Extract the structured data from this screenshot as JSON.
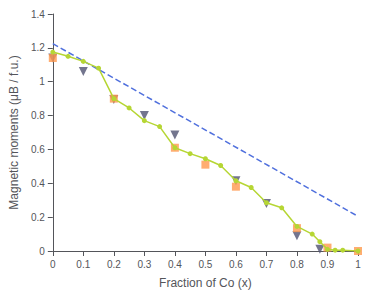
{
  "chart_data": {
    "type": "line",
    "title": "",
    "xlabel": "Fraction of Co (x)",
    "ylabel": "Magnetic moments (μB / f.u.)",
    "xlim": [
      0,
      1.0
    ],
    "ylim": [
      0,
      1.4
    ],
    "xticks": [
      0,
      0.1,
      0.2,
      0.3,
      0.4,
      0.5,
      0.6,
      0.7,
      0.8,
      0.9,
      1.0
    ],
    "yticks": [
      0,
      0.2,
      0.4,
      0.6,
      0.8,
      1.0,
      1.2,
      1.4
    ],
    "grid": false,
    "series": [
      {
        "type": "line",
        "line_style": "dashed",
        "x": [
          0.0,
          1.0
        ],
        "values": [
          1.225,
          0.205
        ]
      },
      {
        "type": "line",
        "line_style": "solid",
        "marker": "circle",
        "x": [
          0.0,
          0.05,
          0.1,
          0.15,
          0.2,
          0.25,
          0.3,
          0.35,
          0.4,
          0.45,
          0.5,
          0.55,
          0.6,
          0.65,
          0.7,
          0.75,
          0.8,
          0.85,
          0.875,
          0.9,
          0.925,
          0.95,
          1.0
        ],
        "values": [
          1.175,
          1.15,
          1.12,
          1.08,
          0.9,
          0.845,
          0.77,
          0.735,
          0.61,
          0.575,
          0.545,
          0.505,
          0.415,
          0.375,
          0.285,
          0.255,
          0.145,
          0.1,
          0.055,
          0.01,
          0.005,
          0.005,
          0.0
        ]
      },
      {
        "type": "scatter",
        "marker": "triangle_down",
        "x": [
          0.0,
          0.1,
          0.2,
          0.3,
          0.4,
          0.6,
          0.7,
          0.8,
          0.875
        ],
        "values": [
          1.14,
          1.06,
          0.895,
          0.8,
          0.685,
          0.415,
          0.28,
          0.09,
          0.01
        ]
      },
      {
        "type": "scatter",
        "marker": "square",
        "x": [
          0.0,
          0.2,
          0.4,
          0.5,
          0.6,
          0.8,
          0.9,
          1.0
        ],
        "values": [
          1.14,
          0.9,
          0.61,
          0.51,
          0.38,
          0.135,
          0.02,
          0.0
        ]
      }
    ]
  }
}
